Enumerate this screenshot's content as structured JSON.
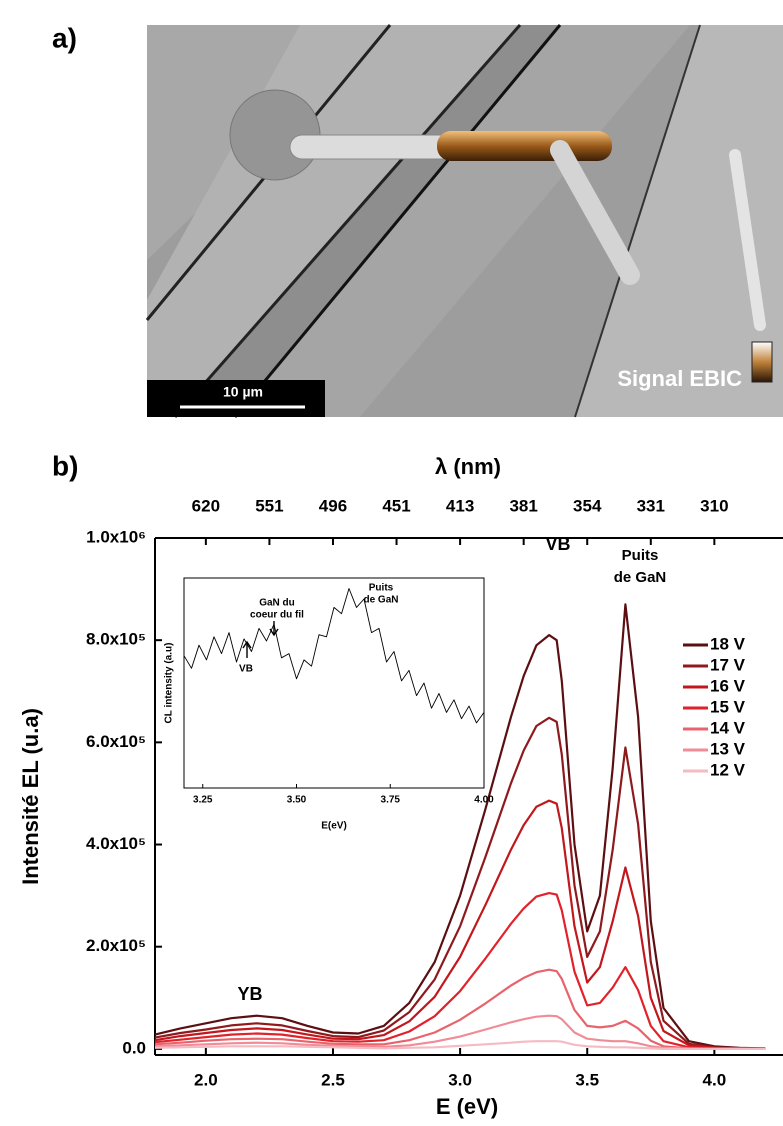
{
  "panel_labels": [
    "a)",
    "b)"
  ],
  "sem_image": {
    "scale_bar": "10 µm",
    "signal_label": "Signal EBIC"
  },
  "chart_data": [
    {
      "type": "line",
      "x_label": "E (eV)",
      "y_label": "Intensité EL (u.a)",
      "x2_label": "λ (nm)",
      "xlim": [
        1.8,
        4.27
      ],
      "ylim": [
        -12000,
        1000000
      ],
      "xticks": [
        {
          "value": 2.0,
          "label": "2.0"
        },
        2.5,
        {
          "value": 3.0,
          "label": "3.0"
        },
        3.5,
        {
          "value": 4.0,
          "label": "4.0"
        }
      ],
      "yticks": [
        {
          "value": 0,
          "label": "0.0"
        },
        {
          "value": 200000,
          "label": "2.0x10⁵"
        },
        {
          "value": 400000,
          "label": "4.0x10⁵"
        },
        {
          "value": 600000,
          "label": "6.0x10⁵"
        },
        {
          "value": 800000,
          "label": "8.0x10⁵"
        },
        {
          "value": 1000000,
          "label": "1.0x10⁶"
        }
      ],
      "x2ticks": [
        {
          "value": 2.0,
          "label": "620"
        },
        {
          "value": 2.25,
          "label": "551"
        },
        {
          "value": 2.5,
          "label": "496"
        },
        {
          "value": 2.75,
          "label": "451"
        },
        {
          "value": 3.0,
          "label": "413"
        },
        {
          "value": 3.25,
          "label": "381"
        },
        {
          "value": 3.5,
          "label": "354"
        },
        {
          "value": 3.75,
          "label": "331"
        },
        {
          "value": 4.0,
          "label": "310"
        }
      ],
      "legend": "right",
      "annotations": [
        "YB",
        "VB",
        "Puits",
        "de GaN"
      ],
      "x": [
        1.8,
        1.9,
        2.0,
        2.1,
        2.2,
        2.3,
        2.4,
        2.5,
        2.6,
        2.7,
        2.8,
        2.9,
        3.0,
        3.1,
        3.2,
        3.25,
        3.3,
        3.35,
        3.38,
        3.4,
        3.45,
        3.5,
        3.55,
        3.6,
        3.65,
        3.7,
        3.75,
        3.8,
        3.9,
        4.0,
        4.1,
        4.2
      ],
      "series": [
        {
          "name": "18 V",
          "color": "#5c0f12",
          "values": [
            28000,
            40000,
            50000,
            60000,
            65000,
            60000,
            45000,
            32000,
            30000,
            45000,
            90000,
            170000,
            300000,
            470000,
            650000,
            730000,
            790000,
            810000,
            800000,
            720000,
            400000,
            230000,
            300000,
            550000,
            870000,
            650000,
            250000,
            80000,
            15000,
            5000,
            2000,
            1000
          ]
        },
        {
          "name": "17 V",
          "color": "#8e1a1e",
          "values": [
            22000,
            31000,
            38000,
            46000,
            50000,
            46000,
            35000,
            25000,
            23000,
            36000,
            72000,
            136000,
            240000,
            376000,
            520000,
            584000,
            632000,
            648000,
            640000,
            576000,
            320000,
            180000,
            230000,
            390000,
            590000,
            440000,
            170000,
            55000,
            10000,
            3000,
            1000,
            1000
          ]
        },
        {
          "name": "16 V",
          "color": "#c2171d",
          "values": [
            17000,
            25000,
            31000,
            37000,
            40000,
            37000,
            28000,
            20000,
            19000,
            27000,
            54000,
            102000,
            180000,
            282000,
            390000,
            438000,
            474000,
            486000,
            480000,
            432000,
            240000,
            130000,
            160000,
            250000,
            355000,
            260000,
            100000,
            35000,
            7000,
            2000,
            1000,
            0
          ]
        },
        {
          "name": "15 V",
          "color": "#e2222b",
          "values": [
            13000,
            18000,
            23000,
            28000,
            30000,
            28000,
            21000,
            15000,
            14000,
            17000,
            34000,
            64000,
            113000,
            177000,
            245000,
            275000,
            298000,
            305000,
            302000,
            271000,
            151000,
            85000,
            90000,
            120000,
            160000,
            115000,
            45000,
            15000,
            3000,
            1000,
            0,
            0
          ]
        },
        {
          "name": "14 V",
          "color": "#e8636c",
          "values": [
            9000,
            12000,
            16000,
            19000,
            20000,
            19000,
            14000,
            10000,
            9000,
            9000,
            17000,
            32000,
            57000,
            89000,
            124000,
            139000,
            150000,
            155000,
            152000,
            137000,
            76000,
            45000,
            42000,
            45000,
            55000,
            40000,
            16000,
            5000,
            1000,
            0,
            0,
            0
          ]
        },
        {
          "name": "13 V",
          "color": "#f08c97",
          "values": [
            5000,
            7000,
            9000,
            11000,
            12000,
            11000,
            8000,
            6000,
            5000,
            4000,
            7000,
            14000,
            24000,
            38000,
            52000,
            58000,
            63000,
            65000,
            64000,
            58000,
            32000,
            20000,
            17000,
            15000,
            15000,
            11000,
            5000,
            2000,
            0,
            0,
            0,
            0
          ]
        },
        {
          "name": "12 V",
          "color": "#f5bac2",
          "values": [
            2000,
            3000,
            4000,
            5000,
            5000,
            5000,
            4000,
            3000,
            2000,
            1000,
            2000,
            3000,
            6000,
            9000,
            12000,
            14000,
            15000,
            15000,
            15000,
            14000,
            8000,
            5000,
            4000,
            3000,
            3000,
            2000,
            1000,
            0,
            0,
            0,
            0,
            0
          ]
        }
      ]
    },
    {
      "type": "line",
      "x_label": "E(eV)",
      "y_label": "CL intensity (a.u)",
      "xlim": [
        3.2,
        4.0
      ],
      "ylim": [
        0,
        1
      ],
      "xticks": [
        3.25,
        {
          "value": 3.5,
          "label": "3.50"
        },
        3.75,
        {
          "value": 4.0,
          "label": "4.00"
        }
      ],
      "annotations": [
        [
          "GaN du",
          "coeur du fil"
        ],
        [
          "Puits",
          "de GaN"
        ],
        [
          "VB"
        ]
      ],
      "x": [
        3.2,
        3.22,
        3.24,
        3.26,
        3.28,
        3.3,
        3.32,
        3.34,
        3.36,
        3.38,
        3.4,
        3.42,
        3.44,
        3.46,
        3.48,
        3.5,
        3.52,
        3.54,
        3.56,
        3.58,
        3.6,
        3.62,
        3.64,
        3.66,
        3.68,
        3.7,
        3.72,
        3.74,
        3.76,
        3.78,
        3.8,
        3.82,
        3.84,
        3.86,
        3.88,
        3.9,
        3.92,
        3.94,
        3.96,
        3.98,
        4.0
      ],
      "series": [
        {
          "color": "#000000",
          "values": [
            0.63,
            0.57,
            0.68,
            0.61,
            0.72,
            0.64,
            0.74,
            0.6,
            0.71,
            0.65,
            0.76,
            0.7,
            0.78,
            0.62,
            0.64,
            0.52,
            0.61,
            0.58,
            0.73,
            0.72,
            0.86,
            0.83,
            0.95,
            0.86,
            0.9,
            0.74,
            0.76,
            0.6,
            0.65,
            0.51,
            0.56,
            0.44,
            0.5,
            0.38,
            0.45,
            0.36,
            0.42,
            0.33,
            0.39,
            0.31,
            0.36
          ]
        }
      ]
    }
  ]
}
